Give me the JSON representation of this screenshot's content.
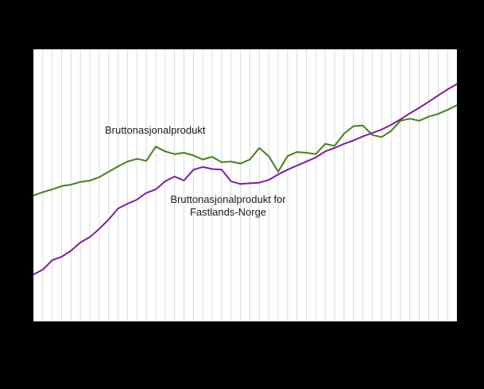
{
  "chart": {
    "background": "#000000",
    "plot_background": "#ffffff",
    "gridline_color": "#d9d9d9",
    "labels": {
      "bnp": "Bruttonasjonalprodukt",
      "fastland_line1": "Bruttonasjonalprodukt  for",
      "fastland_line2": "Fastlands-Norge"
    }
  },
  "chart_data": {
    "type": "line",
    "title": "",
    "xlabel": "",
    "ylabel": "",
    "grid": "vertical-only",
    "legend_position": "inline-labels",
    "ylim": [
      75,
      115
    ],
    "x": [
      1,
      2,
      3,
      4,
      5,
      6,
      7,
      8,
      9,
      10,
      11,
      12,
      13,
      14,
      15,
      16,
      17,
      18,
      19,
      20,
      21,
      22,
      23,
      24,
      25,
      26,
      27,
      28,
      29,
      30,
      31,
      32,
      33,
      34,
      35,
      36,
      37,
      38,
      39,
      40,
      41,
      42,
      43,
      44,
      45,
      46
    ],
    "series": [
      {
        "name": "Bruttonasjonalprodukt",
        "color": "#457f1e",
        "values": [
          93.5,
          94.0,
          94.4,
          94.9,
          95.1,
          95.5,
          95.7,
          96.2,
          97.0,
          97.8,
          98.5,
          98.9,
          98.6,
          100.7,
          100.0,
          99.6,
          99.8,
          99.4,
          98.8,
          99.2,
          98.4,
          98.5,
          98.2,
          98.8,
          100.5,
          99.3,
          97.0,
          99.3,
          99.9,
          99.8,
          99.6,
          101.1,
          100.8,
          102.6,
          103.7,
          103.8,
          102.4,
          102.1,
          103.0,
          104.5,
          104.8,
          104.5,
          105.1,
          105.5,
          106.1,
          106.8
        ]
      },
      {
        "name": "Bruttonasjonalprodukt for Fastlands-Norge",
        "color": "#7b1fa2",
        "values": [
          81.9,
          82.6,
          84.0,
          84.5,
          85.4,
          86.6,
          87.4,
          88.6,
          90.0,
          91.6,
          92.3,
          92.9,
          93.9,
          94.4,
          95.6,
          96.3,
          95.7,
          97.3,
          97.7,
          97.4,
          97.3,
          95.6,
          95.2,
          95.3,
          95.4,
          95.8,
          96.6,
          97.3,
          97.9,
          98.5,
          99.1,
          100.0,
          100.5,
          101.1,
          101.6,
          102.2,
          102.7,
          103.2,
          103.9,
          104.7,
          105.6,
          106.4,
          107.3,
          108.2,
          109.1,
          109.9
        ]
      }
    ]
  }
}
